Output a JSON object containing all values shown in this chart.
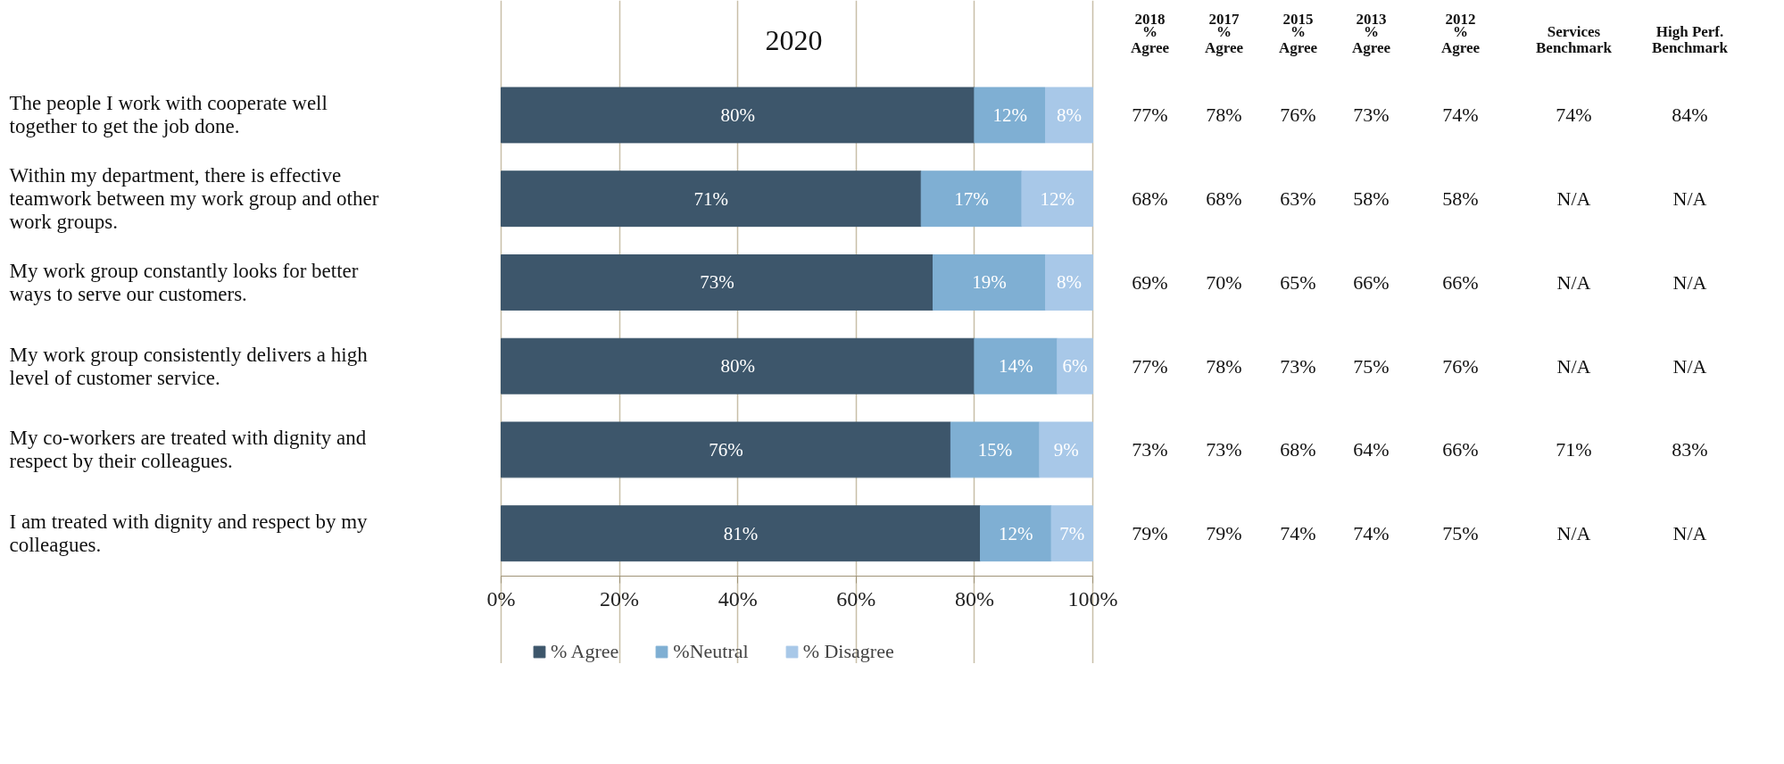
{
  "chart_data": {
    "type": "bar",
    "orientation": "horizontal",
    "stacked": true,
    "title": "2020",
    "categories": [
      "The people I work with cooperate well together to get the job done.",
      "Within my department, there is effective teamwork between my work group and other work groups.",
      "My work group constantly looks for better ways to serve our customers.",
      "My work group consistently delivers a high level of customer service.",
      "My co-workers are treated with dignity and respect by their colleagues.",
      "I am treated with dignity and respect by my colleagues."
    ],
    "series": [
      {
        "name": "% Agree",
        "color": "#3d566b",
        "values": [
          80,
          71,
          73,
          80,
          76,
          81
        ],
        "value_labels": [
          "80%",
          "71%",
          "73%",
          "80%",
          "76%",
          "81%"
        ]
      },
      {
        "name": "%Neutral",
        "color": "#7fafd3",
        "values": [
          12,
          17,
          19,
          14,
          15,
          12
        ],
        "value_labels": [
          "12%",
          "17%",
          "19%",
          "14%",
          "15%",
          "12%"
        ]
      },
      {
        "name": "% Disagree",
        "color": "#a8c8e8",
        "values": [
          8,
          12,
          8,
          6,
          9,
          7
        ],
        "value_labels": [
          "8%",
          "12%",
          "8%",
          "6%",
          "9%",
          "7%"
        ]
      }
    ],
    "xlim": [
      0,
      100
    ],
    "xticks": [
      {
        "value": 0,
        "label": "0%"
      },
      {
        "value": 20,
        "label": "20%"
      },
      {
        "value": 40,
        "label": "40%"
      },
      {
        "value": 60,
        "label": "60%"
      },
      {
        "value": 80,
        "label": "80%"
      },
      {
        "value": 100,
        "label": "100%"
      }
    ],
    "grid": "x",
    "legend": "bottom",
    "annotations": [
      "2018\n%\nAgree",
      "2017\n%\nAgree",
      "2015\n%\nAgree",
      "2013\n%\nAgree",
      "2012\n%\nAgree",
      "Services\nBenchmark",
      "High Perf.\nBenchmark",
      "77%",
      "78%",
      "76%",
      "73%",
      "74%",
      "74%",
      "84%",
      "68%",
      "68%",
      "63%",
      "58%",
      "58%",
      "N/A",
      "N/A",
      "69%",
      "70%",
      "65%",
      "66%",
      "66%",
      "N/A",
      "N/A",
      "77%",
      "78%",
      "73%",
      "75%",
      "76%",
      "N/A",
      "N/A",
      "73%",
      "73%",
      "68%",
      "64%",
      "66%",
      "71%",
      "83%",
      "79%",
      "79%",
      "74%",
      "74%",
      "75%",
      "N/A",
      "N/A"
    ]
  }
}
